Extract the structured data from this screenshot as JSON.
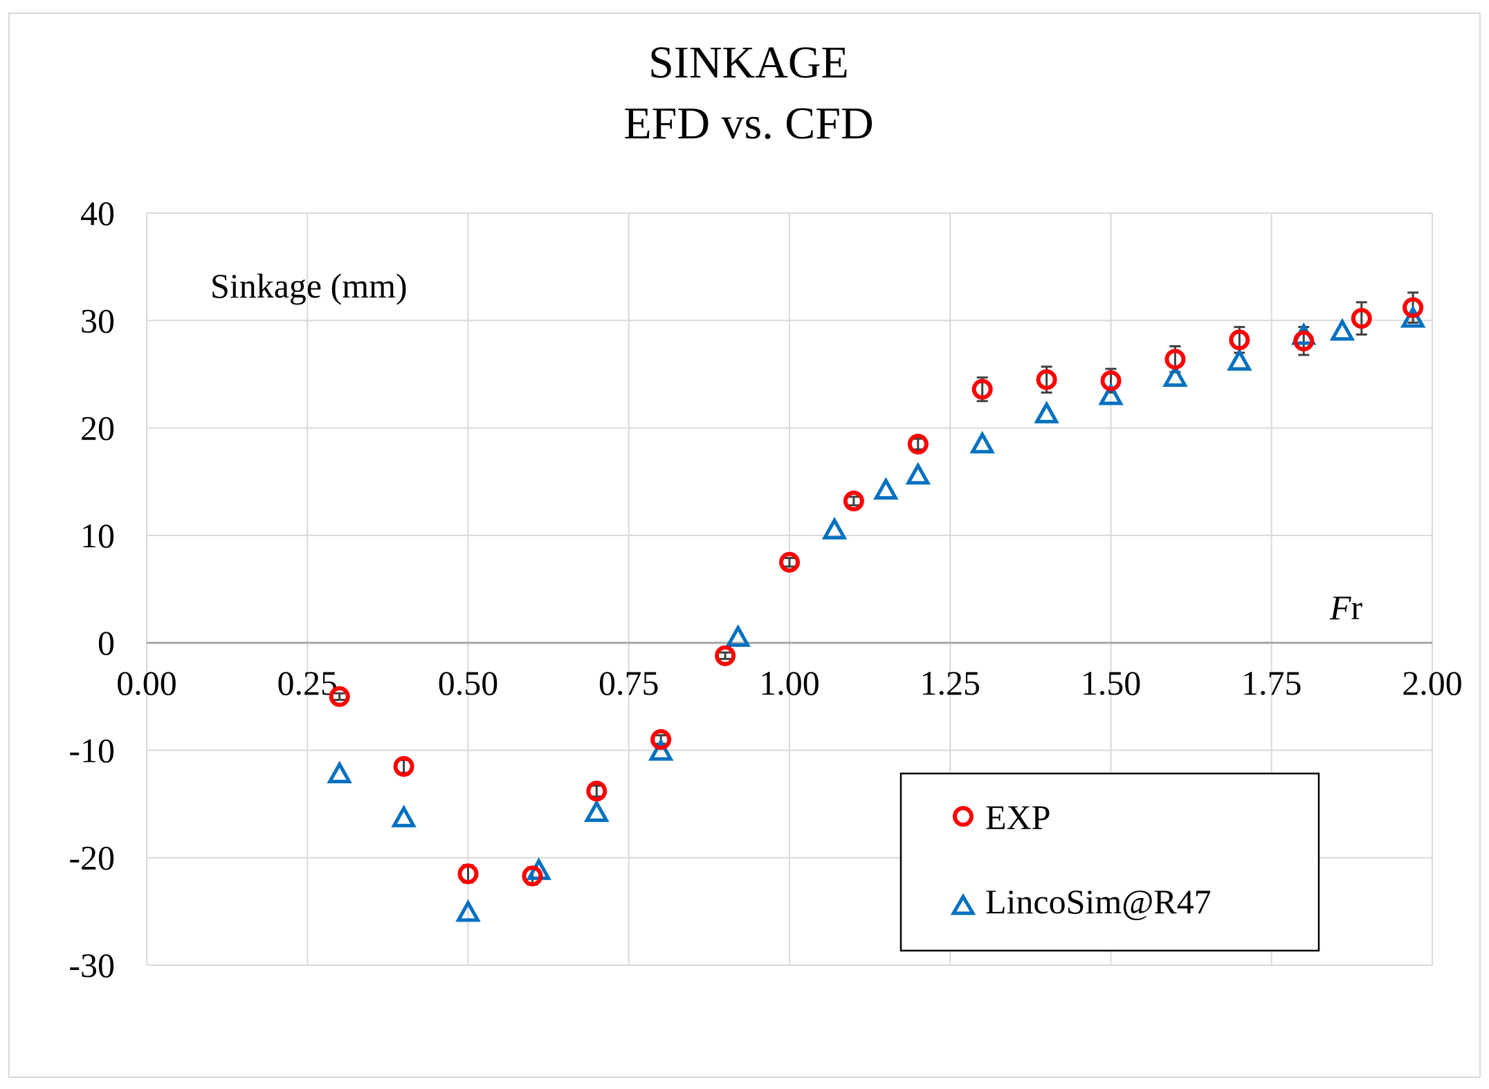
{
  "chart_data": {
    "type": "scatter",
    "title": "SINKAGE",
    "subtitle": "EFD vs. CFD",
    "ylabel": "Sinkage (mm)",
    "xlabel_italic": "F",
    "xlabel_rest": "r",
    "xlim": [
      0,
      2
    ],
    "ylim": [
      -30,
      40
    ],
    "xticks": [
      0,
      0.25,
      0.5,
      0.75,
      1,
      1.25,
      1.5,
      1.75,
      2
    ],
    "xtick_labels": [
      "0.00",
      "0.25",
      "0.50",
      "0.75",
      "1.00",
      "1.25",
      "1.50",
      "1.75",
      "2.00"
    ],
    "yticks": [
      -30,
      -20,
      -10,
      0,
      10,
      20,
      30,
      40
    ],
    "ytick_labels": [
      "-30",
      "-20",
      "-10",
      "0",
      "10",
      "20",
      "30",
      "40"
    ],
    "grid": true,
    "legend_position": "bottom-right",
    "series": [
      {
        "name": "EXP",
        "marker": "circle",
        "color": "#ff0000",
        "x": [
          0.3,
          0.4,
          0.5,
          0.6,
          0.7,
          0.8,
          0.9,
          1.0,
          1.1,
          1.2,
          1.3,
          1.4,
          1.5,
          1.6,
          1.7,
          1.8,
          1.89,
          1.97
        ],
        "y": [
          -5.0,
          -11.5,
          -21.5,
          -21.7,
          -13.8,
          -9.0,
          -1.2,
          7.5,
          13.2,
          18.5,
          23.6,
          24.5,
          24.4,
          26.4,
          28.2,
          28.1,
          30.2,
          31.2
        ],
        "err": [
          0.3,
          0.6,
          0.8,
          0.8,
          0.5,
          0.4,
          0.3,
          0.4,
          0.4,
          0.5,
          1.1,
          1.2,
          1.1,
          1.2,
          1.2,
          1.3,
          1.5,
          1.4
        ]
      },
      {
        "name": "LincoSim@R47",
        "marker": "triangle",
        "color": "#0070c0",
        "x": [
          0.3,
          0.4,
          0.5,
          0.61,
          0.7,
          0.8,
          0.92,
          1.07,
          1.15,
          1.2,
          1.3,
          1.4,
          1.5,
          1.6,
          1.7,
          1.8,
          1.86,
          1.97
        ],
        "y": [
          -12.2,
          -16.3,
          -25.1,
          -21.2,
          -15.8,
          -10.1,
          0.5,
          10.5,
          14.2,
          15.6,
          18.5,
          21.3,
          23.0,
          24.7,
          26.2,
          28.6,
          29.0,
          30.2
        ]
      }
    ]
  }
}
